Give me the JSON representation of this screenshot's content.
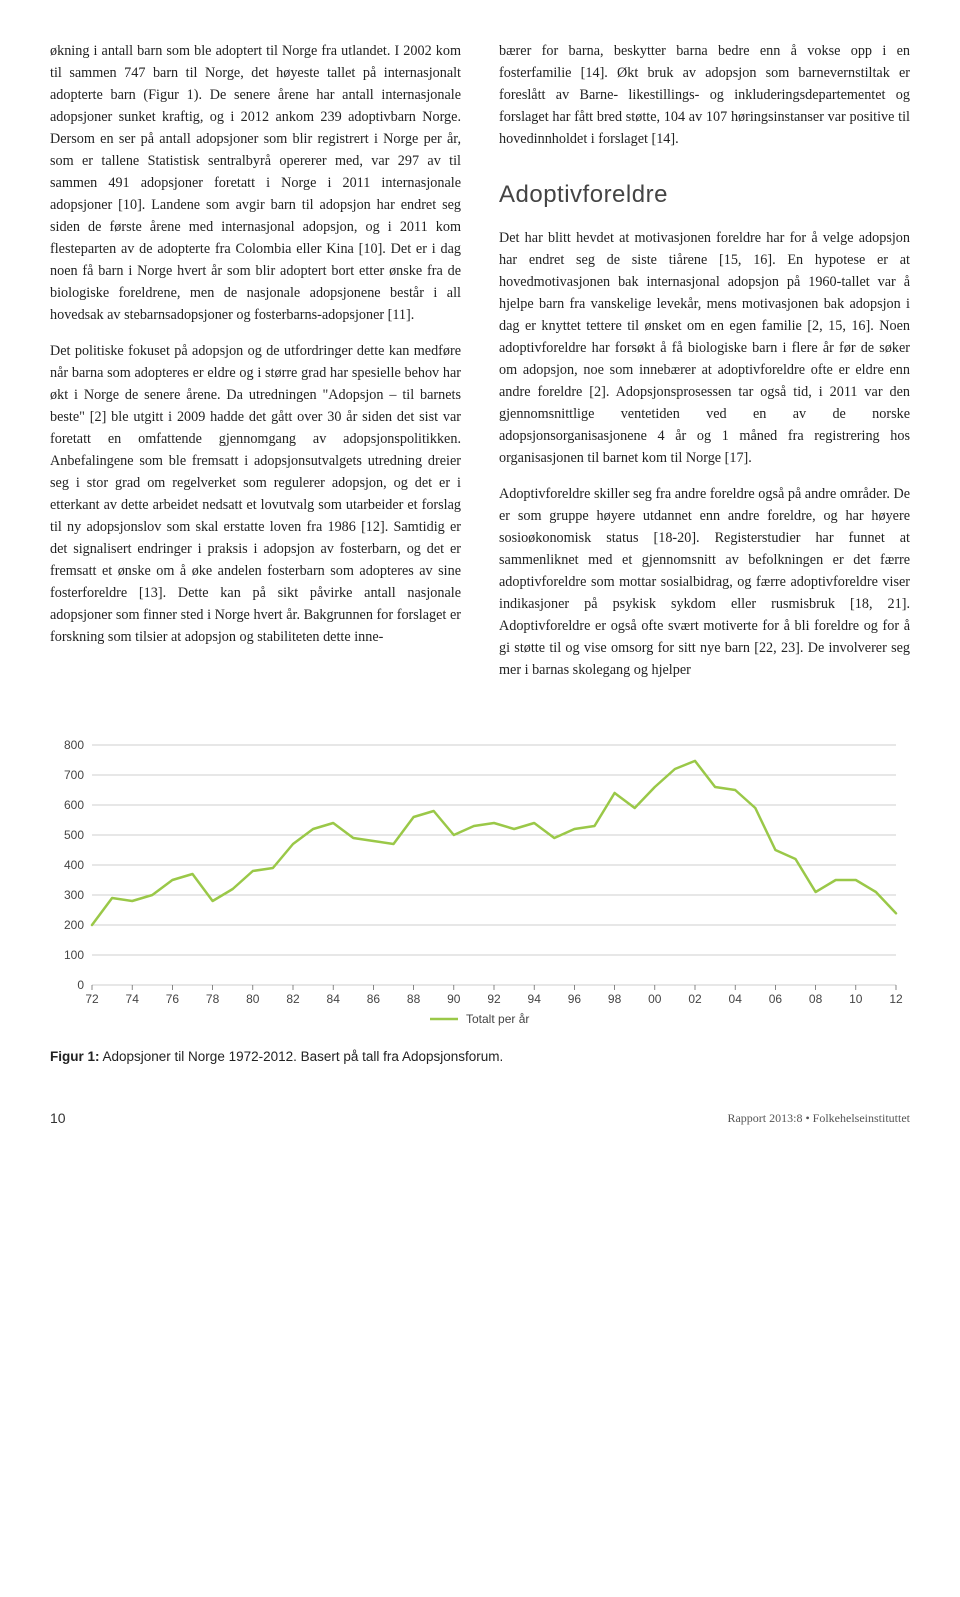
{
  "left_column": {
    "p1": "økning i antall barn som ble adoptert til Norge fra utlandet. I 2002 kom til sammen 747 barn til Norge, det høyeste tallet på internasjonalt adopterte barn (Figur 1). De senere årene har antall internasjonale adopsjoner sunket kraftig, og i 2012 ankom 239 adoptivbarn Norge. Dersom en ser på antall adopsjoner som blir registrert i Norge per år, som er tallene Statistisk sentralbyrå opererer med, var 297 av til sammen 491 adopsjoner foretatt i Norge i 2011 internasjonale adopsjoner [10]. Landene som avgir barn til adopsjon har endret seg siden de første årene med internasjonal adopsjon, og i 2011 kom flesteparten av de adopterte fra Colombia eller Kina [10]. Det er i dag noen få barn i Norge hvert år som blir adoptert bort etter ønske fra de biologiske foreldrene, men de nasjonale adopsjonene består i all hovedsak av stebarnsadopsjoner og fosterbarns-adopsjoner [11].",
    "p2": "Det politiske fokuset på adopsjon og de utfordringer dette kan medføre når barna som adopteres er eldre og i større grad har spesielle behov har økt i Norge de senere årene. Da utredningen \"Adopsjon – til barnets beste\" [2] ble utgitt i 2009 hadde det gått over 30 år siden det sist var foretatt en omfattende gjennomgang av adopsjonspolitikken. Anbefalingene som ble fremsatt i adopsjonsutvalgets utredning dreier seg i stor grad om regelverket som regulerer adopsjon, og det er i etterkant av dette arbeidet nedsatt et lovutvalg som utarbeider et forslag til ny adopsjonslov som skal erstatte loven fra 1986 [12]. Samtidig er det signalisert endringer i praksis i adopsjon av fosterbarn, og det er fremsatt et ønske om å øke andelen fosterbarn som adopteres av sine fosterforeldre [13]. Dette kan på sikt påvirke antall nasjonale adopsjoner som finner sted i Norge hvert år. Bakgrunnen for forslaget er forskning som tilsier at adopsjon og stabiliteten dette inne-"
  },
  "right_column": {
    "p1": "bærer for barna, beskytter barna bedre enn å vokse opp i en fosterfamilie [14]. Økt bruk av adopsjon som barnevernstiltak er foreslått av Barne- likestillings- og inkluderingsdepartementet og forslaget har fått bred støtte, 104 av 107 høringsinstanser var positive til hovedinnholdet i forslaget [14].",
    "heading": "Adoptivforeldre",
    "p2": "Det har blitt hevdet at motivasjonen foreldre har for å velge adopsjon har endret seg de siste tiårene [15, 16]. En hypotese er at hovedmotivasjonen bak internasjonal adopsjon på 1960-tallet var å hjelpe barn fra vanskelige levekår, mens motivasjonen bak adopsjon i dag er knyttet tettere til ønsket om en egen familie [2, 15, 16]. Noen adoptivforeldre har forsøkt å få biologiske barn i flere år før de søker om adopsjon, noe som innebærer at adoptivforeldre ofte er eldre enn andre foreldre [2]. Adopsjonsprosessen tar også tid, i 2011 var den gjennomsnittlige ventetiden ved en av de norske adopsjonsorganisasjonene 4 år og 1 måned fra registrering hos organisasjonen til barnet kom til Norge [17].",
    "p3": "Adoptivforeldre skiller seg fra andre foreldre også på andre områder. De er som gruppe høyere utdannet enn andre foreldre, og har høyere sosioøkonomisk status [18-20]. Registerstudier har funnet at sammenliknet med et gjennomsnitt av befolkningen er det færre adoptivforeldre som mottar sosialbidrag, og færre adoptivforeldre viser indikasjoner på psykisk sykdom eller rusmisbruk [18, 21]. Adoptivforeldre er også ofte svært motiverte for å bli foreldre og for å gi støtte til og vise omsorg for sitt nye barn [22, 23]. De involverer seg mer i barnas skolegang og hjelper"
  },
  "chart": {
    "type": "line",
    "ylim": [
      0,
      800
    ],
    "ytick_step": 100,
    "yticks_labels": [
      "0",
      "100",
      "200",
      "300",
      "400",
      "500",
      "600",
      "700",
      "800"
    ],
    "xticks": [
      "72",
      "74",
      "76",
      "78",
      "80",
      "82",
      "84",
      "86",
      "88",
      "90",
      "92",
      "94",
      "96",
      "98",
      "00",
      "02",
      "04",
      "06",
      "08",
      "10",
      "12"
    ],
    "data": [
      {
        "x": 72,
        "y": 200
      },
      {
        "x": 73,
        "y": 290
      },
      {
        "x": 74,
        "y": 280
      },
      {
        "x": 75,
        "y": 300
      },
      {
        "x": 76,
        "y": 350
      },
      {
        "x": 77,
        "y": 370
      },
      {
        "x": 78,
        "y": 280
      },
      {
        "x": 79,
        "y": 320
      },
      {
        "x": 80,
        "y": 380
      },
      {
        "x": 81,
        "y": 390
      },
      {
        "x": 82,
        "y": 470
      },
      {
        "x": 83,
        "y": 520
      },
      {
        "x": 84,
        "y": 540
      },
      {
        "x": 85,
        "y": 490
      },
      {
        "x": 86,
        "y": 480
      },
      {
        "x": 87,
        "y": 470
      },
      {
        "x": 88,
        "y": 560
      },
      {
        "x": 89,
        "y": 580
      },
      {
        "x": 90,
        "y": 500
      },
      {
        "x": 91,
        "y": 530
      },
      {
        "x": 92,
        "y": 540
      },
      {
        "x": 93,
        "y": 520
      },
      {
        "x": 94,
        "y": 540
      },
      {
        "x": 95,
        "y": 490
      },
      {
        "x": 96,
        "y": 520
      },
      {
        "x": 97,
        "y": 530
      },
      {
        "x": 98,
        "y": 640
      },
      {
        "x": 99,
        "y": 590
      },
      {
        "x": 0,
        "y": 660
      },
      {
        "x": 1,
        "y": 720
      },
      {
        "x": 2,
        "y": 747
      },
      {
        "x": 3,
        "y": 660
      },
      {
        "x": 4,
        "y": 650
      },
      {
        "x": 5,
        "y": 590
      },
      {
        "x": 6,
        "y": 450
      },
      {
        "x": 7,
        "y": 420
      },
      {
        "x": 8,
        "y": 310
      },
      {
        "x": 9,
        "y": 350
      },
      {
        "x": 10,
        "y": 350
      },
      {
        "x": 11,
        "y": 310
      },
      {
        "x": 12,
        "y": 239
      }
    ],
    "line_color": "#9ac848",
    "line_width": 2.5,
    "grid_color": "#bfbfbf",
    "axis_color": "#555555",
    "background": "#ffffff",
    "tick_fontsize": 12,
    "tick_color": "#444444",
    "legend_label": "Totalt per år",
    "legend_color": "#9ac848"
  },
  "figure_caption": {
    "label": "Figur 1:",
    "text": " Adopsjoner til Norge 1972-2012. Basert på tall fra Adopsjonsforum."
  },
  "footer": {
    "page": "10",
    "report": "Rapport 2013:8 • Folkehelseinstituttet"
  }
}
